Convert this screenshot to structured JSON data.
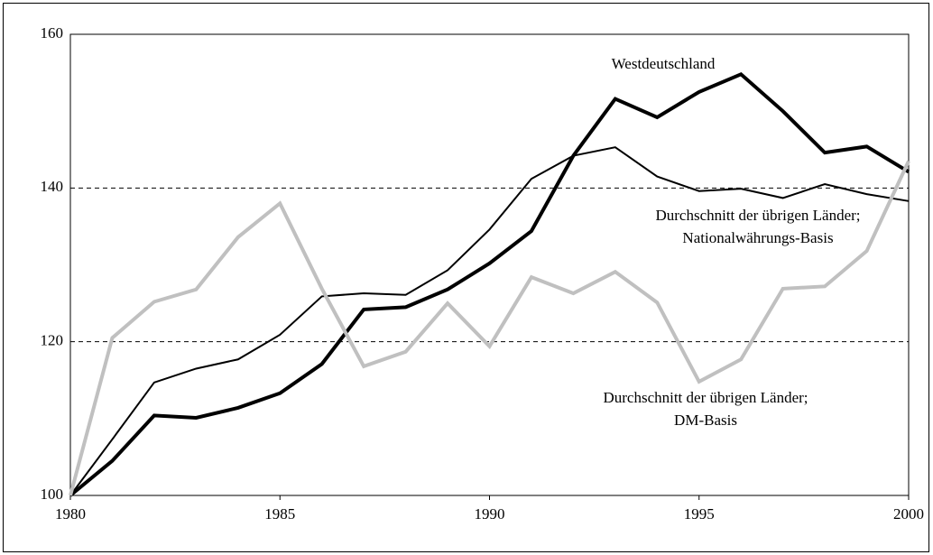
{
  "chart_data": {
    "type": "line",
    "x": [
      1980,
      1981,
      1982,
      1983,
      1984,
      1985,
      1986,
      1987,
      1988,
      1989,
      1990,
      1991,
      1992,
      1993,
      1994,
      1995,
      1996,
      1997,
      1998,
      1999,
      2000
    ],
    "series": [
      {
        "label": [
          "Westdeutschland"
        ],
        "color": "#000000",
        "width": 4,
        "values": [
          100,
          104.5,
          110.4,
          110.1,
          111.4,
          113.3,
          117.1,
          124.2,
          124.5,
          126.8,
          130.2,
          134.4,
          144.2,
          151.6,
          149.2,
          152.5,
          154.8,
          150.0,
          144.6,
          145.4,
          142.1
        ]
      },
      {
        "label": [
          "Durchschnitt der übrigen Länder;",
          "Nationalwährungs-Basis"
        ],
        "color": "#000000",
        "width": 2,
        "values": [
          100,
          107.3,
          114.7,
          116.5,
          117.7,
          120.9,
          125.9,
          126.3,
          126.1,
          129.3,
          134.6,
          141.2,
          144.2,
          145.3,
          141.5,
          139.6,
          139.9,
          138.7,
          140.5,
          139.2,
          138.3
        ]
      },
      {
        "label": [
          "Durchschnitt der übrigen Länder;",
          "DM-Basis"
        ],
        "color": "#c0c0c0",
        "width": 4,
        "values": [
          100,
          120.5,
          125.2,
          126.8,
          133.6,
          138.0,
          126.9,
          116.8,
          118.7,
          125.0,
          119.4,
          128.4,
          126.3,
          129.1,
          125.1,
          114.8,
          117.7,
          126.9,
          127.2,
          131.8,
          143.5
        ]
      }
    ],
    "xlim": [
      1980,
      2000
    ],
    "xticks": [
      1980,
      1985,
      1990,
      1995,
      2000
    ],
    "ylim": [
      100,
      160
    ],
    "yticks": [
      100,
      120,
      140,
      160
    ],
    "grid": true
  }
}
